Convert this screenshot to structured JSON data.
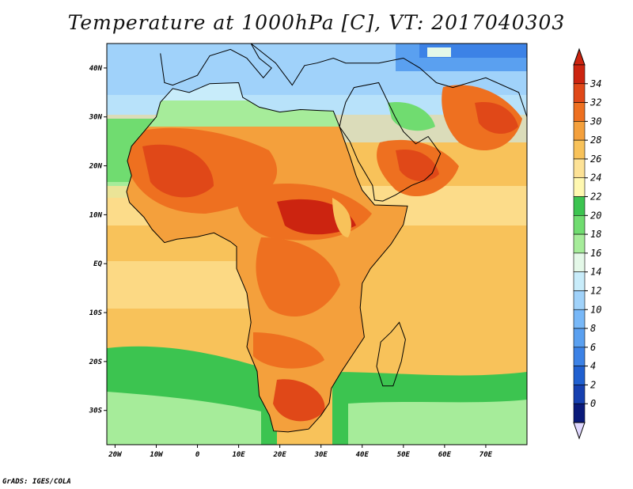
{
  "title": "Temperature at 1000hPa [C], VT: 2017040303",
  "credit": "GrADS: IGES/COLA",
  "map": {
    "lon_range": [
      -22,
      80
    ],
    "lat_range": [
      -37,
      45
    ],
    "lon_ticks": [
      {
        "value": -20,
        "label": "20W"
      },
      {
        "value": -10,
        "label": "10W"
      },
      {
        "value": 0,
        "label": "0"
      },
      {
        "value": 10,
        "label": "10E"
      },
      {
        "value": 20,
        "label": "20E"
      },
      {
        "value": 30,
        "label": "30E"
      },
      {
        "value": 40,
        "label": "40E"
      },
      {
        "value": 50,
        "label": "50E"
      },
      {
        "value": 60,
        "label": "60E"
      },
      {
        "value": 70,
        "label": "70E"
      }
    ],
    "lat_ticks": [
      {
        "value": 40,
        "label": "40N"
      },
      {
        "value": 30,
        "label": "30N"
      },
      {
        "value": 20,
        "label": "20N"
      },
      {
        "value": 10,
        "label": "10N"
      },
      {
        "value": 0,
        "label": "EQ"
      },
      {
        "value": -10,
        "label": "10S"
      },
      {
        "value": -20,
        "label": "20S"
      },
      {
        "value": -30,
        "label": "30S"
      }
    ]
  },
  "colorbar": {
    "labels": [
      "0",
      "2",
      "4",
      "6",
      "8",
      "10",
      "12",
      "14",
      "16",
      "18",
      "20",
      "22",
      "24",
      "26",
      "28",
      "30",
      "32",
      "34"
    ],
    "colors": [
      "#0a1a7a",
      "#1640b0",
      "#2060d0",
      "#3c82e6",
      "#5aa0f0",
      "#78b8f8",
      "#a0d2fa",
      "#c8ecfa",
      "#e4f8e8",
      "#a6ec9a",
      "#70dc70",
      "#3cc450",
      "#fff8b0",
      "#fde296",
      "#f8c25a",
      "#f4a03c",
      "#ee7020",
      "#e04818",
      "#cc2410"
    ],
    "under_color": "#e0d8ff",
    "over_color": "#cc2410"
  }
}
